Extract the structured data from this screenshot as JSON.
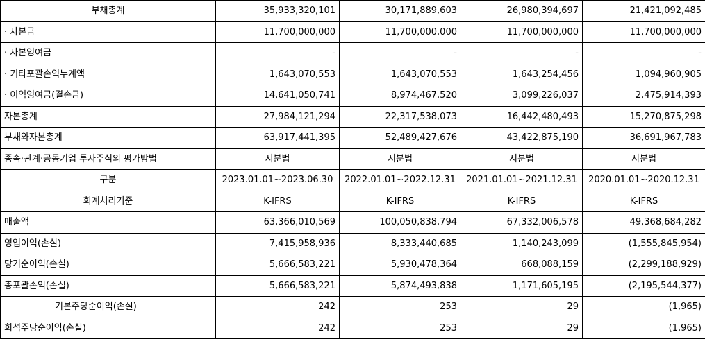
{
  "rows": [
    {
      "label": "부채총계",
      "align": "center",
      "values": [
        "35,933,320,101",
        "30,171,889,603",
        "26,980,394,697",
        "21,421,092,485"
      ],
      "valign": "num"
    },
    {
      "label": "· 자본금",
      "align": "left",
      "values": [
        "11,700,000,000",
        "11,700,000,000",
        "11,700,000,000",
        "11,700,000,000"
      ],
      "valign": "num"
    },
    {
      "label": "· 자본잉여금",
      "align": "left",
      "values": [
        "-",
        "-",
        "-",
        "-"
      ],
      "valign": "num"
    },
    {
      "label": "· 기타포괄손익누계액",
      "align": "left",
      "values": [
        "1,643,070,553",
        "1,643,070,553",
        "1,643,254,456",
        "1,094,960,905"
      ],
      "valign": "num"
    },
    {
      "label": "· 이익잉여금(결손금)",
      "align": "left",
      "values": [
        "14,641,050,741",
        "8,974,467,520",
        "3,099,226,037",
        "2,475,914,393"
      ],
      "valign": "num"
    },
    {
      "label": "자본총계",
      "align": "left",
      "values": [
        "27,984,121,294",
        "22,317,538,073",
        "16,442,480,493",
        "15,270,875,298"
      ],
      "valign": "num"
    },
    {
      "label": "부채와자본총계",
      "align": "left",
      "values": [
        "63,917,441,395",
        "52,489,427,676",
        "43,422,875,190",
        "36,691,967,783"
      ],
      "valign": "num"
    },
    {
      "label": "종속·관계·공동기업 투자주식의 평가방법",
      "align": "left",
      "values": [
        "지분법",
        "지분법",
        "지분법",
        "지분법"
      ],
      "valign": "center"
    },
    {
      "label": "구분",
      "align": "center",
      "values": [
        "2023.01.01~2023.06.30",
        "2022.01.01~2022.12.31",
        "2021.01.01~2021.12.31",
        "2020.01.01~2020.12.31"
      ],
      "valign": "center"
    },
    {
      "label": "회계처리기준",
      "align": "center",
      "values": [
        "K-IFRS",
        "K-IFRS",
        "K-IFRS",
        "K-IFRS"
      ],
      "valign": "center"
    },
    {
      "label": "매출액",
      "align": "left",
      "values": [
        "63,366,010,569",
        "100,050,838,794",
        "67,332,006,578",
        "49,368,684,282"
      ],
      "valign": "num"
    },
    {
      "label": "영업이익(손실)",
      "align": "left",
      "values": [
        "7,415,958,936",
        "8,333,440,685",
        "1,140,243,099",
        "(1,555,845,954)"
      ],
      "valign": "num"
    },
    {
      "label": "당기순이익(손실)",
      "align": "left",
      "values": [
        "5,666,583,221",
        "5,930,478,364",
        "668,088,159",
        "(2,299,188,929)"
      ],
      "valign": "num"
    },
    {
      "label": "총포괄손익(손실)",
      "align": "left",
      "values": [
        "5,666,583,221",
        "5,874,493,838",
        "1,171,605,195",
        "(2,195,544,377)"
      ],
      "valign": "num"
    },
    {
      "label": "기본주당순이익(손실)",
      "align": "indent",
      "values": [
        "242",
        "253",
        "29",
        "(1,965)"
      ],
      "valign": "num"
    },
    {
      "label": "희석주당순이익(손실)",
      "align": "left",
      "values": [
        "242",
        "253",
        "29",
        "(1,965)"
      ],
      "valign": "num"
    }
  ]
}
